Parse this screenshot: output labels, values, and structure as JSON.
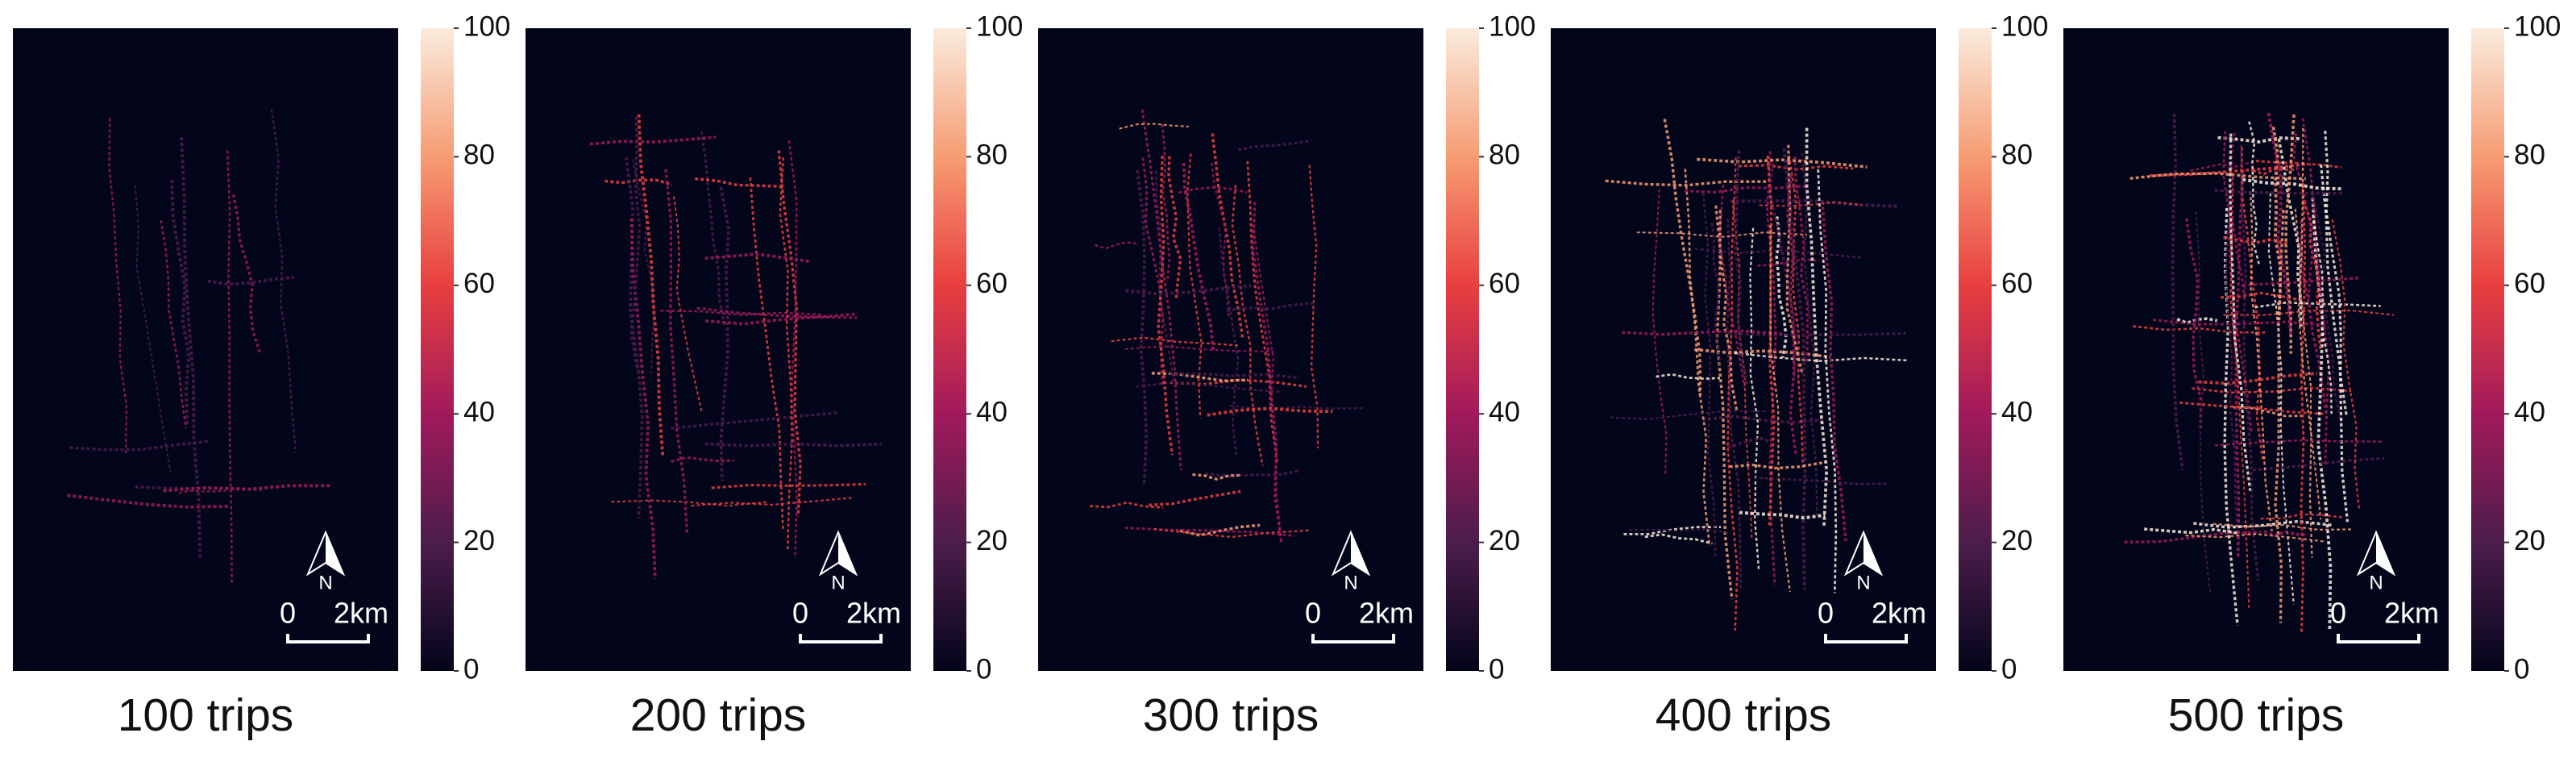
{
  "colormap": [
    "#03051a",
    "#4c1d4b",
    "#a11a5b",
    "#e83f3f",
    "#f69c73",
    "#faebdd"
  ],
  "panels": [
    {
      "title": "100 trips",
      "colorbar": {
        "ylim": [
          0,
          100
        ],
        "yticks": [
          0,
          20,
          40,
          60,
          80,
          100
        ]
      },
      "north": "N",
      "scale": [
        "0",
        "2km"
      ]
    },
    {
      "title": "200 trips",
      "colorbar": {
        "ylim": [
          0,
          100
        ],
        "yticks": [
          0,
          20,
          40,
          60,
          80,
          100
        ]
      },
      "north": "N",
      "scale": [
        "0",
        "2km"
      ]
    },
    {
      "title": "300 trips",
      "colorbar": {
        "ylim": [
          0,
          100
        ],
        "yticks": [
          0,
          20,
          40,
          60,
          80,
          100
        ]
      },
      "north": "N",
      "scale": [
        "0",
        "2km"
      ]
    },
    {
      "title": "400 trips",
      "colorbar": {
        "ylim": [
          0,
          100
        ],
        "yticks": [
          0,
          20,
          40,
          60,
          80,
          100
        ]
      },
      "north": "N",
      "scale": [
        "0",
        "2km"
      ]
    },
    {
      "title": "500 trips",
      "colorbar": {
        "ylim": [
          0,
          100
        ],
        "yticks": [
          0,
          20,
          40,
          60,
          80,
          100
        ]
      },
      "north": "N",
      "scale": [
        "0",
        "2km"
      ]
    }
  ]
}
